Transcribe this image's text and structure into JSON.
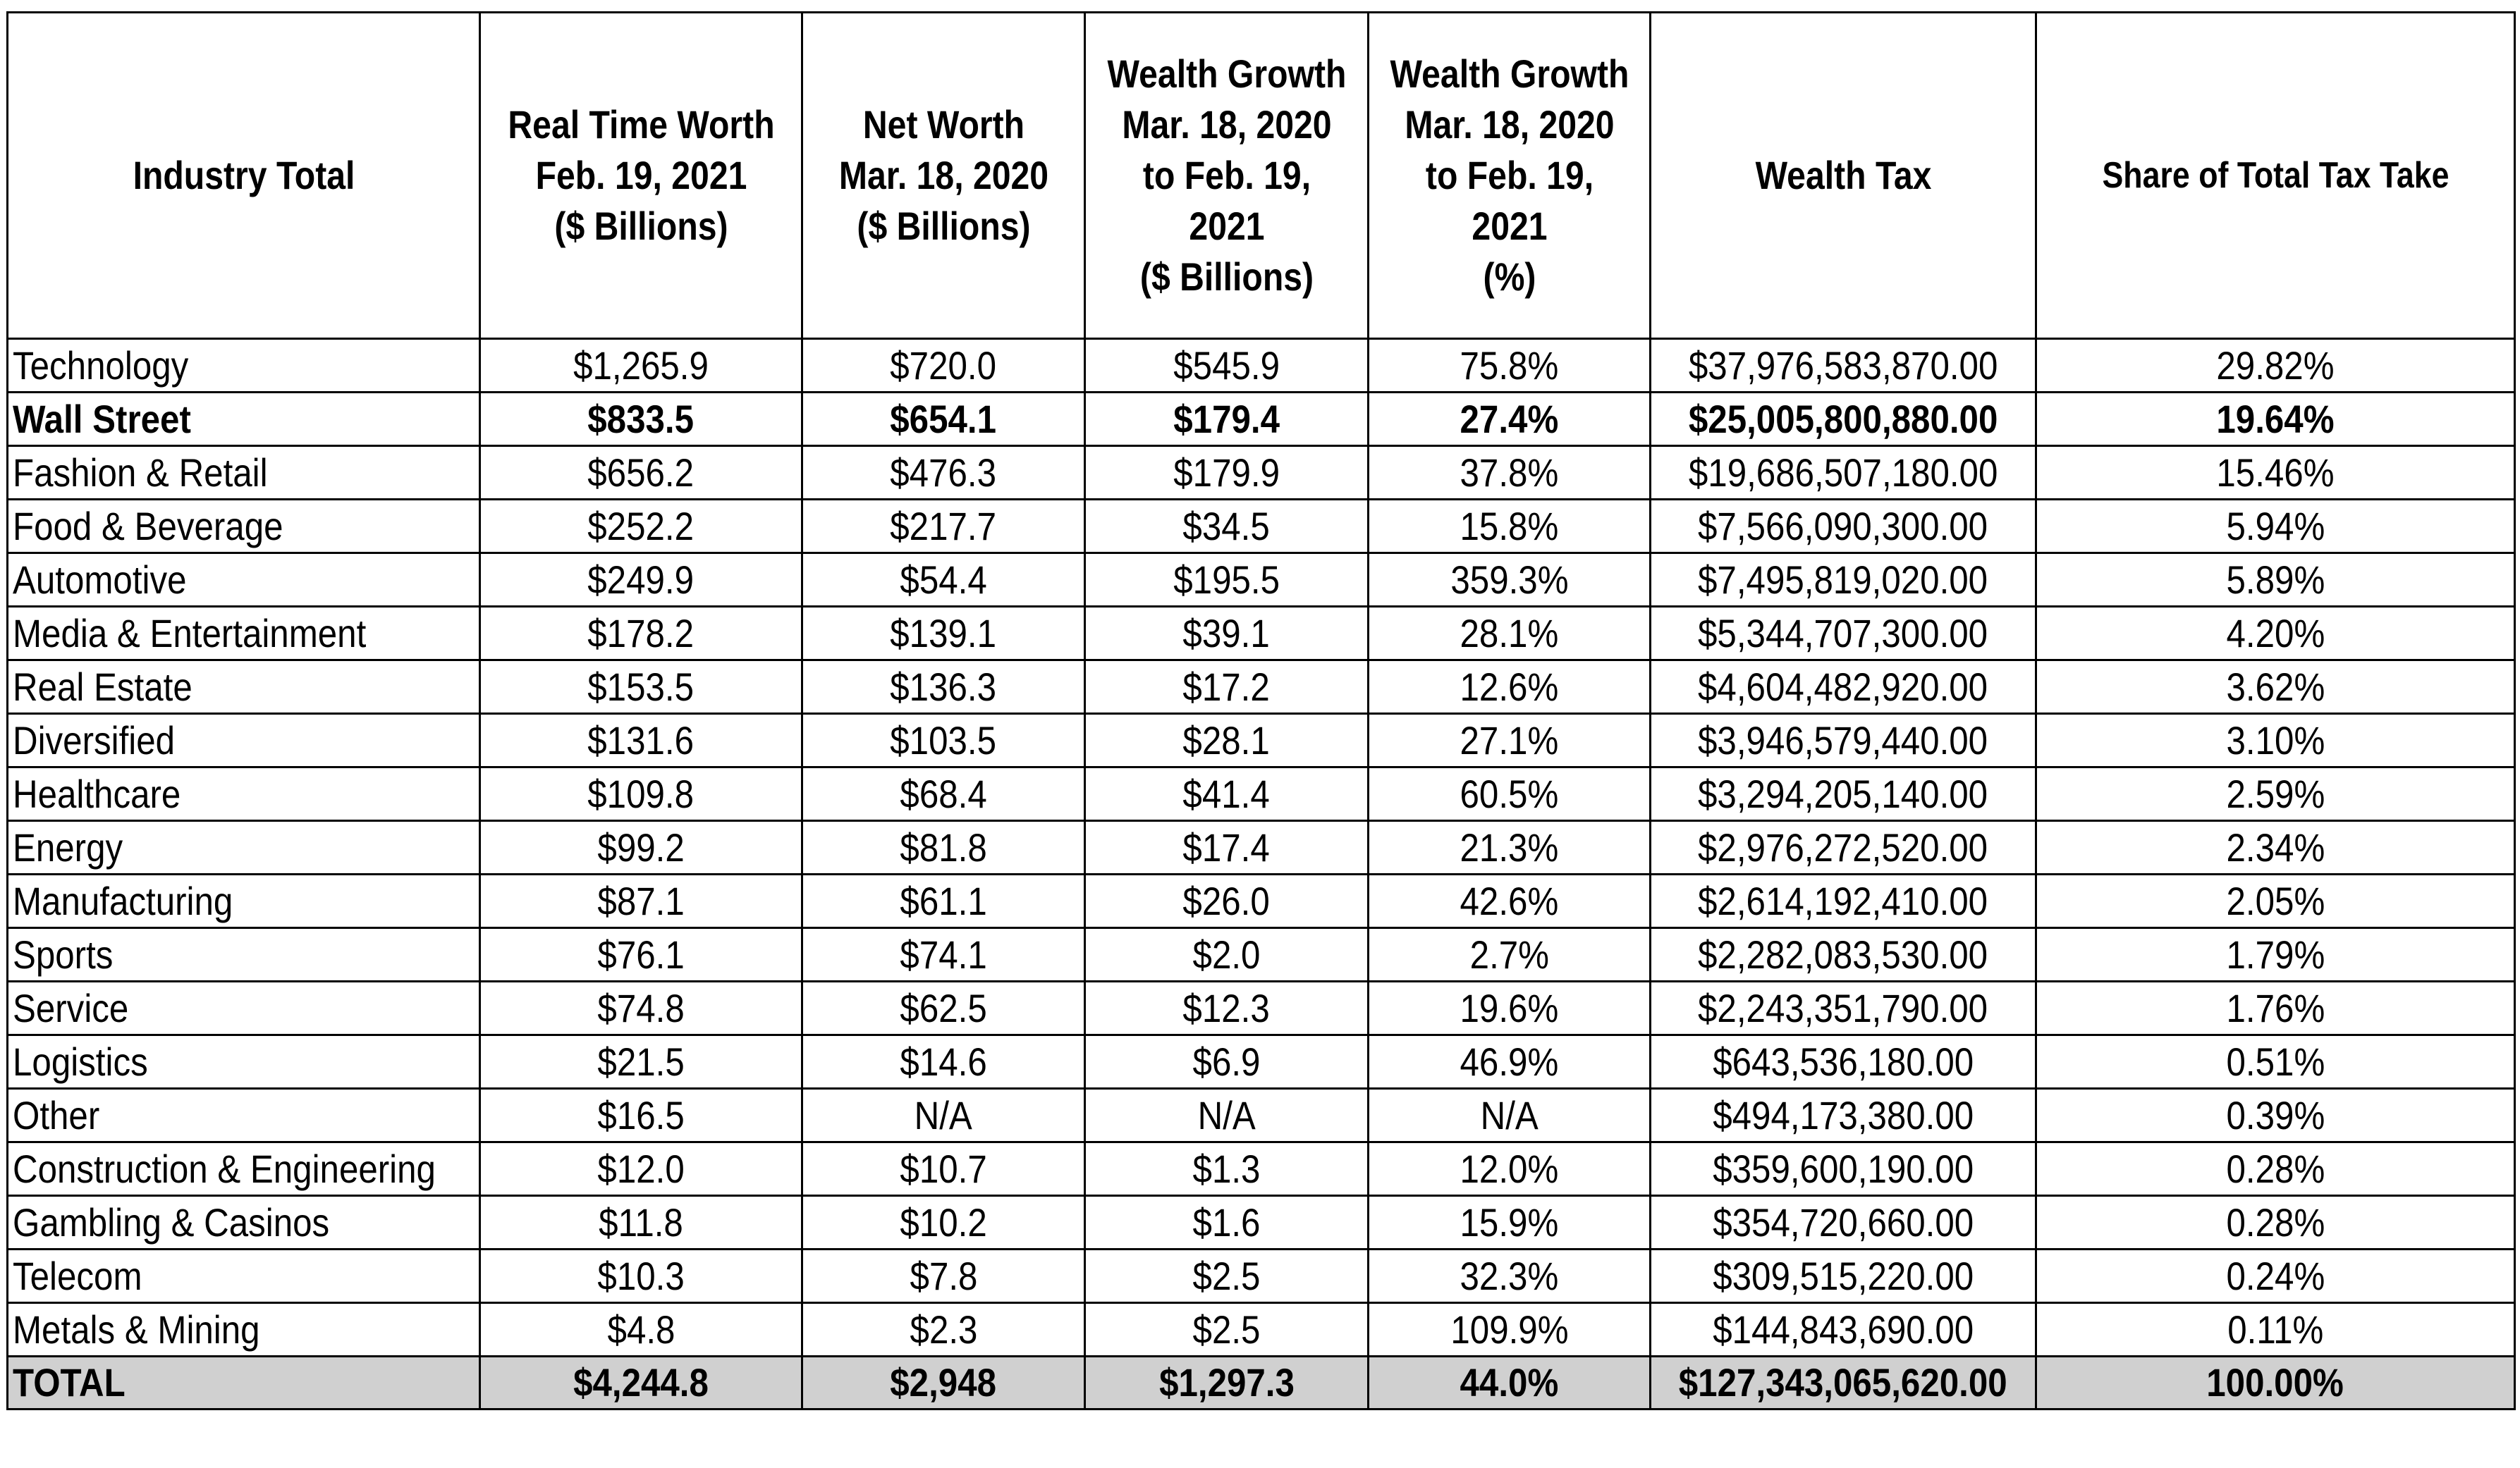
{
  "headers": [
    "Industry Total",
    "Real Time Worth\nFeb. 19, 2021\n($ Billions)",
    "Net Worth\nMar. 18, 2020\n($ Billions)",
    "Wealth Growth\nMar. 18, 2020\nto Feb. 19,\n2021\n($ Billions)",
    "Wealth Growth\nMar. 18, 2020\nto Feb. 19,\n2021\n(%)",
    "Wealth Tax",
    "Share of Total Tax Take"
  ],
  "rows": [
    {
      "industry": "Technology",
      "real_time_worth": "$1,265.9",
      "net_worth": "$720.0",
      "growth_billions": "$545.9",
      "growth_pct": "75.8%",
      "wealth_tax": "$37,976,583,870.00",
      "share": "29.82%",
      "bold": false
    },
    {
      "industry": "Wall Street",
      "real_time_worth": "$833.5",
      "net_worth": "$654.1",
      "growth_billions": "$179.4",
      "growth_pct": "27.4%",
      "wealth_tax": "$25,005,800,880.00",
      "share": "19.64%",
      "bold": true
    },
    {
      "industry": "Fashion & Retail",
      "real_time_worth": "$656.2",
      "net_worth": "$476.3",
      "growth_billions": "$179.9",
      "growth_pct": "37.8%",
      "wealth_tax": "$19,686,507,180.00",
      "share": "15.46%",
      "bold": false
    },
    {
      "industry": "Food & Beverage",
      "real_time_worth": "$252.2",
      "net_worth": "$217.7",
      "growth_billions": "$34.5",
      "growth_pct": "15.8%",
      "wealth_tax": "$7,566,090,300.00",
      "share": "5.94%",
      "bold": false
    },
    {
      "industry": "Automotive",
      "real_time_worth": "$249.9",
      "net_worth": "$54.4",
      "growth_billions": "$195.5",
      "growth_pct": "359.3%",
      "wealth_tax": "$7,495,819,020.00",
      "share": "5.89%",
      "bold": false
    },
    {
      "industry": "Media & Entertainment",
      "real_time_worth": "$178.2",
      "net_worth": "$139.1",
      "growth_billions": "$39.1",
      "growth_pct": "28.1%",
      "wealth_tax": "$5,344,707,300.00",
      "share": "4.20%",
      "bold": false
    },
    {
      "industry": "Real Estate",
      "real_time_worth": "$153.5",
      "net_worth": "$136.3",
      "growth_billions": "$17.2",
      "growth_pct": "12.6%",
      "wealth_tax": "$4,604,482,920.00",
      "share": "3.62%",
      "bold": false
    },
    {
      "industry": "Diversified",
      "real_time_worth": "$131.6",
      "net_worth": "$103.5",
      "growth_billions": "$28.1",
      "growth_pct": "27.1%",
      "wealth_tax": "$3,946,579,440.00",
      "share": "3.10%",
      "bold": false
    },
    {
      "industry": "Healthcare",
      "real_time_worth": "$109.8",
      "net_worth": "$68.4",
      "growth_billions": "$41.4",
      "growth_pct": "60.5%",
      "wealth_tax": "$3,294,205,140.00",
      "share": "2.59%",
      "bold": false
    },
    {
      "industry": "Energy",
      "real_time_worth": "$99.2",
      "net_worth": "$81.8",
      "growth_billions": "$17.4",
      "growth_pct": "21.3%",
      "wealth_tax": "$2,976,272,520.00",
      "share": "2.34%",
      "bold": false
    },
    {
      "industry": "Manufacturing",
      "real_time_worth": "$87.1",
      "net_worth": "$61.1",
      "growth_billions": "$26.0",
      "growth_pct": "42.6%",
      "wealth_tax": "$2,614,192,410.00",
      "share": "2.05%",
      "bold": false
    },
    {
      "industry": "Sports",
      "real_time_worth": "$76.1",
      "net_worth": "$74.1",
      "growth_billions": "$2.0",
      "growth_pct": "2.7%",
      "wealth_tax": "$2,282,083,530.00",
      "share": "1.79%",
      "bold": false
    },
    {
      "industry": "Service",
      "real_time_worth": "$74.8",
      "net_worth": "$62.5",
      "growth_billions": "$12.3",
      "growth_pct": "19.6%",
      "wealth_tax": "$2,243,351,790.00",
      "share": "1.76%",
      "bold": false
    },
    {
      "industry": "Logistics",
      "real_time_worth": "$21.5",
      "net_worth": "$14.6",
      "growth_billions": "$6.9",
      "growth_pct": "46.9%",
      "wealth_tax": "$643,536,180.00",
      "share": "0.51%",
      "bold": false
    },
    {
      "industry": "Other",
      "real_time_worth": "$16.5",
      "net_worth": "N/A",
      "growth_billions": "N/A",
      "growth_pct": "N/A",
      "wealth_tax": "$494,173,380.00",
      "share": "0.39%",
      "bold": false
    },
    {
      "industry": "Construction & Engineering",
      "real_time_worth": "$12.0",
      "net_worth": "$10.7",
      "growth_billions": "$1.3",
      "growth_pct": "12.0%",
      "wealth_tax": "$359,600,190.00",
      "share": "0.28%",
      "bold": false
    },
    {
      "industry": "Gambling & Casinos",
      "real_time_worth": "$11.8",
      "net_worth": "$10.2",
      "growth_billions": "$1.6",
      "growth_pct": "15.9%",
      "wealth_tax": "$354,720,660.00",
      "share": "0.28%",
      "bold": false
    },
    {
      "industry": "Telecom",
      "real_time_worth": "$10.3",
      "net_worth": "$7.8",
      "growth_billions": "$2.5",
      "growth_pct": "32.3%",
      "wealth_tax": "$309,515,220.00",
      "share": "0.24%",
      "bold": false
    },
    {
      "industry": "Metals & Mining",
      "real_time_worth": "$4.8",
      "net_worth": "$2.3",
      "growth_billions": "$2.5",
      "growth_pct": "109.9%",
      "wealth_tax": "$144,843,690.00",
      "share": "0.11%",
      "bold": false
    }
  ],
  "total": {
    "industry": "TOTAL",
    "real_time_worth": "$4,244.8",
    "net_worth": "$2,948",
    "growth_billions": "$1,297.3",
    "growth_pct": "44.0%",
    "wealth_tax": "$127,343,065,620.00",
    "share": "100.00%"
  },
  "colors": {
    "border": "#000000",
    "total_row_background": "#d0d0d0"
  }
}
